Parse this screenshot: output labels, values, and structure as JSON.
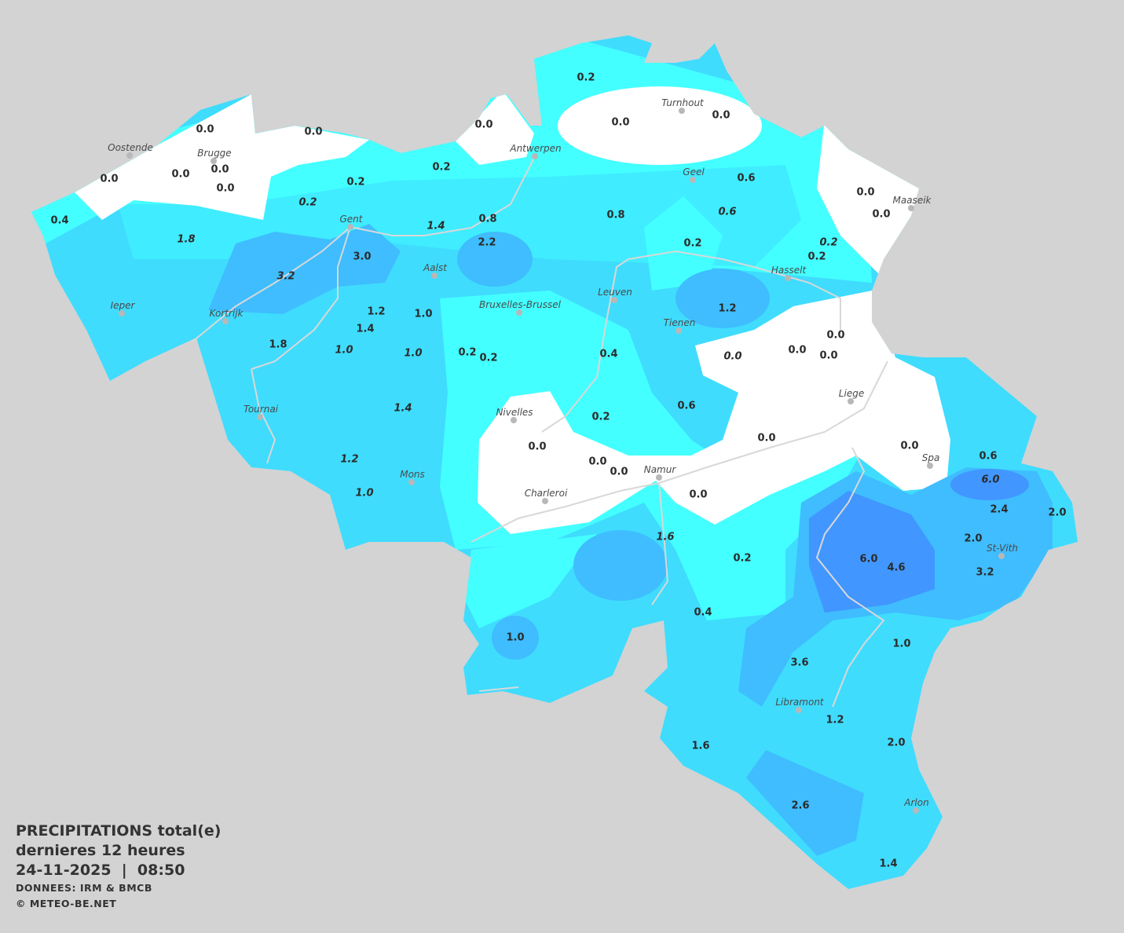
{
  "legend": {
    "title": "PRECIPITATIONS total(e)",
    "period": "dernieres 12 heures",
    "datetime": "24-11-2025  |  08:50",
    "source": "DONNEES: IRM & BMCB",
    "copyright": "© METEO-BE.NET"
  },
  "colors": {
    "background": "#d3d3d3",
    "no_rain": "#ffffff",
    "level_1": "#44ffff",
    "level_2": "#40ecff",
    "level_3": "#3fdcfe",
    "level_4": "#3fbdfe",
    "level_5": "#4196ff",
    "rivers": "#d8d8d8"
  },
  "cities": [
    "Oostende",
    "Brugge",
    "Gent",
    "Antwerpen",
    "Turnhout",
    "Geel",
    "Maaseik",
    "Hasselt",
    "Aalst",
    "Leuven",
    "Ieper",
    "Kortrijk",
    "Bruxelles-Brussel",
    "Tienen",
    "Liege",
    "Tournai",
    "Nivelles",
    "Mons",
    "Namur",
    "Charleroi",
    "Spa",
    "St-Vith",
    "Libramont",
    "Arlon"
  ],
  "station_values_mm": [
    "0.2",
    "0.0",
    "0.0",
    "0.0",
    "0.0",
    "0.0",
    "0.0",
    "0.0",
    "0.0",
    "0.0",
    "0.2",
    "0.2",
    "0.2",
    "0.4",
    "1.8",
    "0.8",
    "1.4",
    "2.2",
    "3.0",
    "3.2",
    "0.8",
    "0.6",
    "0.6",
    "0.2",
    "0.2",
    "0.2",
    "0.0",
    "0.0",
    "1.2",
    "1.0",
    "1.4",
    "1.8",
    "1.0",
    "1.0",
    "0.2",
    "0.2",
    "0.4",
    "1.2",
    "0.0",
    "0.0",
    "0.0",
    "0.0",
    "1.4",
    "0.2",
    "0.6",
    "0.0",
    "0.0",
    "0.0",
    "0.0",
    "0.0",
    "1.2",
    "1.0",
    "0.0",
    "0.6",
    "6.0",
    "2.4",
    "2.0",
    "2.0",
    "3.2",
    "6.0",
    "4.6",
    "1.6",
    "0.2",
    "0.4",
    "1.0",
    "1.0",
    "3.6",
    "1.2",
    "1.6",
    "2.0",
    "2.6",
    "1.4"
  ]
}
